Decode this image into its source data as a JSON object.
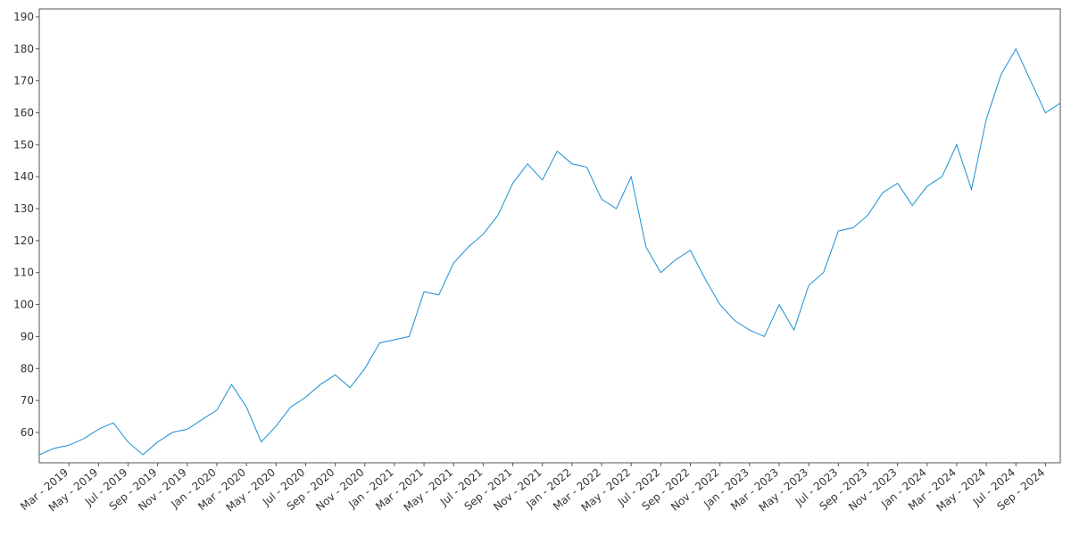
{
  "chart_data": {
    "type": "line",
    "x": [
      "2019-01",
      "2019-02",
      "2019-03",
      "2019-04",
      "2019-05",
      "2019-06",
      "2019-07",
      "2019-08",
      "2019-09",
      "2019-10",
      "2019-11",
      "2019-12",
      "2020-01",
      "2020-02",
      "2020-03",
      "2020-04",
      "2020-05",
      "2020-06",
      "2020-07",
      "2020-08",
      "2020-09",
      "2020-10",
      "2020-11",
      "2020-12",
      "2021-01",
      "2021-02",
      "2021-03",
      "2021-04",
      "2021-05",
      "2021-06",
      "2021-07",
      "2021-08",
      "2021-09",
      "2021-10",
      "2021-11",
      "2021-12",
      "2022-01",
      "2022-02",
      "2022-03",
      "2022-04",
      "2022-05",
      "2022-06",
      "2022-07",
      "2022-08",
      "2022-09",
      "2022-10",
      "2022-11",
      "2022-12",
      "2023-01",
      "2023-02",
      "2023-03",
      "2023-04",
      "2023-05",
      "2023-06",
      "2023-07",
      "2023-08",
      "2023-09",
      "2023-10",
      "2023-11",
      "2023-12",
      "2024-01",
      "2024-02",
      "2024-03",
      "2024-04",
      "2024-05",
      "2024-06",
      "2024-07",
      "2024-08",
      "2024-09",
      "2024-10"
    ],
    "series": [
      {
        "color": "#1a8fd4",
        "values": [
          53,
          55,
          56,
          58,
          61,
          63,
          57,
          53,
          57,
          60,
          61,
          64,
          67,
          75,
          68,
          57,
          62,
          68,
          71,
          75,
          78,
          74,
          80,
          88,
          89,
          90,
          104,
          103,
          113,
          118,
          122,
          128,
          138,
          144,
          139,
          148,
          144,
          143,
          133,
          130,
          140,
          118,
          110,
          114,
          117,
          108,
          100,
          95,
          92,
          90,
          100,
          92,
          106,
          110,
          123,
          124,
          128,
          135,
          138,
          131,
          137,
          140,
          150,
          136,
          158,
          172,
          180,
          170,
          160,
          163
        ]
      }
    ],
    "xlim": [
      "2019-01",
      "2024-10"
    ],
    "xticks": [
      {
        "value": "2019-03",
        "label": "Mar - 2019"
      },
      {
        "value": "2019-05",
        "label": "May - 2019"
      },
      {
        "value": "2019-07",
        "label": "Jul - 2019"
      },
      {
        "value": "2019-09",
        "label": "Sep - 2019"
      },
      {
        "value": "2019-11",
        "label": "Nov - 2019"
      },
      {
        "value": "2020-01",
        "label": "Jan - 2020"
      },
      {
        "value": "2020-03",
        "label": "Mar - 2020"
      },
      {
        "value": "2020-05",
        "label": "May - 2020"
      },
      {
        "value": "2020-07",
        "label": "Jul - 2020"
      },
      {
        "value": "2020-09",
        "label": "Sep - 2020"
      },
      {
        "value": "2020-11",
        "label": "Nov - 2020"
      },
      {
        "value": "2021-01",
        "label": "Jan - 2021"
      },
      {
        "value": "2021-03",
        "label": "Mar - 2021"
      },
      {
        "value": "2021-05",
        "label": "May - 2021"
      },
      {
        "value": "2021-07",
        "label": "Jul - 2021"
      },
      {
        "value": "2021-09",
        "label": "Sep - 2021"
      },
      {
        "value": "2021-11",
        "label": "Nov - 2021"
      },
      {
        "value": "2022-01",
        "label": "Jan - 2022"
      },
      {
        "value": "2022-03",
        "label": "Mar - 2022"
      },
      {
        "value": "2022-05",
        "label": "May - 2022"
      },
      {
        "value": "2022-07",
        "label": "Jul - 2022"
      },
      {
        "value": "2022-09",
        "label": "Sep - 2022"
      },
      {
        "value": "2022-11",
        "label": "Nov - 2022"
      },
      {
        "value": "2023-01",
        "label": "Jan - 2023"
      },
      {
        "value": "2023-03",
        "label": "Mar - 2023"
      },
      {
        "value": "2023-05",
        "label": "May - 2023"
      },
      {
        "value": "2023-07",
        "label": "Jul - 2023"
      },
      {
        "value": "2023-09",
        "label": "Sep - 2023"
      },
      {
        "value": "2023-11",
        "label": "Nov - 2023"
      },
      {
        "value": "2024-01",
        "label": "Jan - 2024"
      },
      {
        "value": "2024-03",
        "label": "Mar - 2024"
      },
      {
        "value": "2024-05",
        "label": "May - 2024"
      },
      {
        "value": "2024-07",
        "label": "Jul - 2024"
      },
      {
        "value": "2024-09",
        "label": "Sep - 2024"
      }
    ],
    "ylim": [
      50.5,
      192.5
    ],
    "yticks": [
      60,
      70,
      80,
      90,
      100,
      110,
      120,
      130,
      140,
      150,
      160,
      170,
      180,
      190
    ],
    "grid": false
  }
}
